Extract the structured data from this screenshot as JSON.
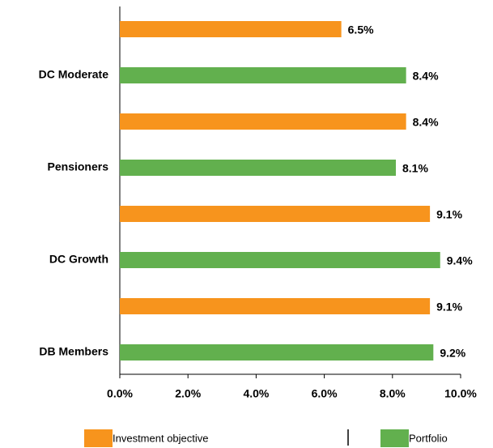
{
  "chart_data": {
    "type": "hbar",
    "categories": [
      "DC Moderate",
      "Pensioners",
      "DC Growth",
      "DB Members"
    ],
    "series": [
      {
        "name": "Investment objective",
        "color": "#f7941d",
        "values": [
          6.5,
          8.4,
          9.1,
          9.1
        ],
        "value_labels": [
          "6.5%",
          "8.4%",
          "9.1%",
          "9.1%"
        ]
      },
      {
        "name": "Portfolio",
        "color": "#62b04e",
        "values": [
          8.4,
          8.1,
          9.4,
          9.2
        ],
        "value_labels": [
          "8.4%",
          "8.1%",
          "9.4%",
          "9.2%"
        ]
      }
    ],
    "xlim": [
      0,
      10
    ],
    "xticks": [
      {
        "value": 0,
        "label": "0.0%"
      },
      {
        "value": 2,
        "label": "2.0%"
      },
      {
        "value": 4,
        "label": "4.0%"
      },
      {
        "value": 6,
        "label": "6.0%"
      },
      {
        "value": 8,
        "label": "8.0%"
      },
      {
        "value": 10,
        "label": "10.0%"
      }
    ],
    "legend": "bottom"
  }
}
